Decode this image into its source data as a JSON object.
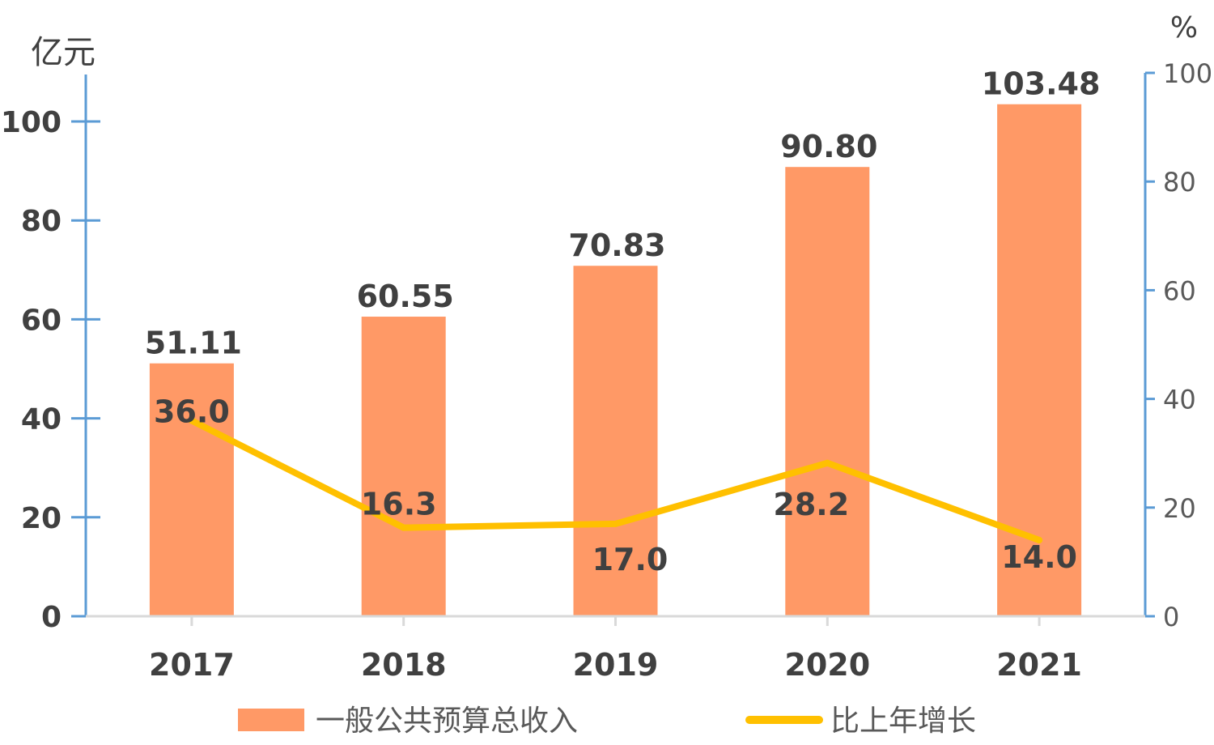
{
  "chart_data": {
    "type": "bar",
    "categories": [
      "2017",
      "2018",
      "2019",
      "2020",
      "2021"
    ],
    "series": [
      {
        "name": "一般公共预算总收入",
        "type": "bar",
        "axis": "left",
        "values": [
          51.11,
          60.55,
          70.83,
          90.8,
          103.48
        ],
        "labels": [
          "51.11",
          "60.55",
          "70.83",
          "90.80",
          "103.48"
        ],
        "color": "#FF9966"
      },
      {
        "name": "比上年增长",
        "type": "line",
        "axis": "right",
        "values": [
          36.0,
          16.3,
          17.0,
          28.2,
          14.0
        ],
        "labels": [
          "36.0",
          "16.3",
          "17.0",
          "28.2",
          "14.0"
        ],
        "color": "#FFC000"
      }
    ],
    "left_axis": {
      "unit": "亿元",
      "ylim": [
        0,
        100
      ],
      "ticks": [
        "0",
        "20",
        "40",
        "60",
        "80",
        "100"
      ]
    },
    "right_axis": {
      "unit": "%",
      "ylim": [
        0,
        100
      ],
      "ticks": [
        "0",
        "20",
        "40",
        "60",
        "80",
        "100"
      ]
    },
    "axis_color": "#5B9BD5",
    "grid": false,
    "legend_position": "bottom"
  }
}
